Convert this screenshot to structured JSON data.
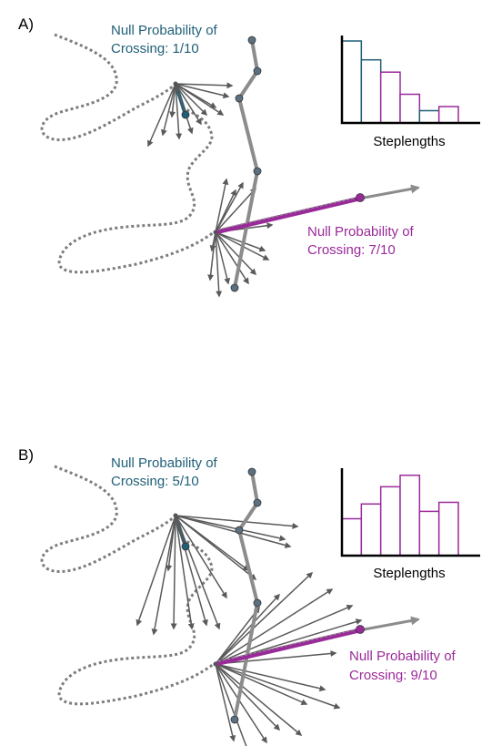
{
  "colors": {
    "teal": "#1f5f78",
    "magenta": "#9a2a9a",
    "track": "#8c8c8c",
    "arrow": "#5a5a5a",
    "path": "#7d7d7d",
    "node": "#5b7080"
  },
  "panels": [
    {
      "panel_label": "A)",
      "teal_label": {
        "line1": "Null Probability of",
        "line2": "Crossing: 1/10"
      },
      "magenta_label": {
        "line1": "Null Probability of",
        "line2": "Crossing: 7/10"
      },
      "histogram": {
        "type": "bar",
        "xlabel": "Steplengths",
        "values": [
          100,
          77,
          62,
          35,
          15,
          20
        ],
        "bar_colors": [
          "teal",
          "teal",
          "magenta",
          "magenta",
          "teal",
          "magenta"
        ]
      }
    },
    {
      "panel_label": "B)",
      "teal_label": {
        "line1": "Null Probability of",
        "line2": "Crossing: 5/10"
      },
      "magenta_label": {
        "line1": "Null Probability of",
        "line2": "Crossing: 9/10"
      },
      "histogram": {
        "type": "bar",
        "xlabel": "Steplengths",
        "values": [
          45,
          63,
          84,
          98,
          54,
          65
        ],
        "bar_colors": [
          "magenta",
          "magenta",
          "magenta",
          "magenta",
          "magenta",
          "magenta"
        ]
      }
    }
  ]
}
